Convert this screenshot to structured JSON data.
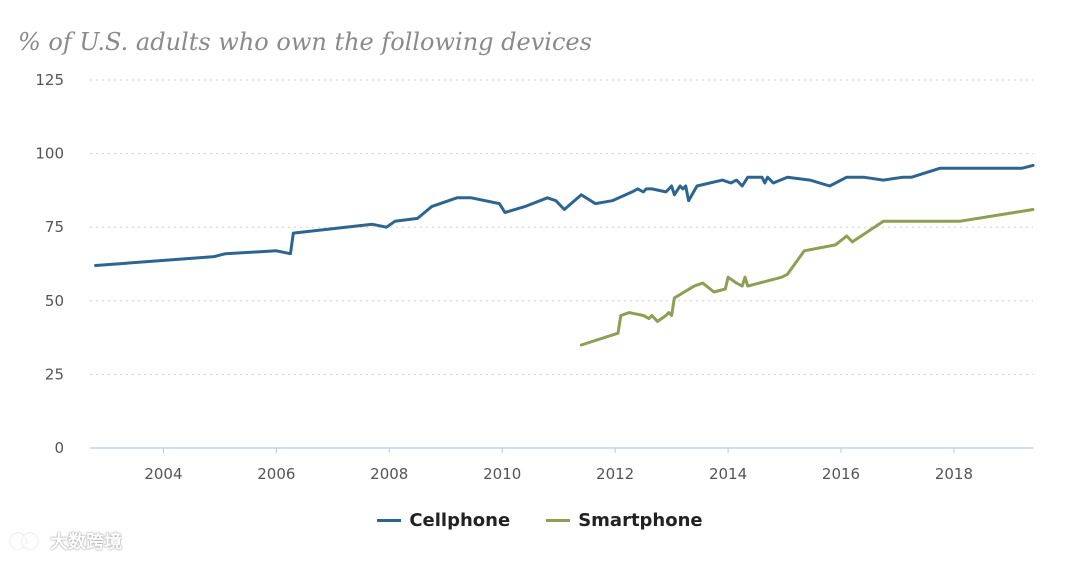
{
  "chart_data": {
    "type": "line",
    "title": "% of U.S. adults who own the following devices",
    "ylim": [
      0,
      125
    ],
    "yticks": [
      0,
      25,
      50,
      75,
      100,
      125
    ],
    "xlim": [
      2002.7,
      2019.4
    ],
    "xticks": [
      2004,
      2006,
      2008,
      2010,
      2012,
      2014,
      2016,
      2018
    ],
    "grid": true,
    "legend_position": "bottom-center",
    "series": [
      {
        "name": "Cellphone",
        "color": "#2e6590",
        "points": [
          [
            2002.8,
            62
          ],
          [
            2004.9,
            65
          ],
          [
            2005.1,
            66
          ],
          [
            2006.0,
            67
          ],
          [
            2006.25,
            66
          ],
          [
            2006.3,
            73
          ],
          [
            2007.7,
            76
          ],
          [
            2007.95,
            75
          ],
          [
            2008.1,
            77
          ],
          [
            2008.5,
            78
          ],
          [
            2008.75,
            82
          ],
          [
            2009.05,
            84
          ],
          [
            2009.2,
            85
          ],
          [
            2009.45,
            85
          ],
          [
            2009.95,
            83
          ],
          [
            2010.05,
            80
          ],
          [
            2010.4,
            82
          ],
          [
            2010.8,
            85
          ],
          [
            2010.95,
            84
          ],
          [
            2011.1,
            81
          ],
          [
            2011.4,
            86
          ],
          [
            2011.65,
            83
          ],
          [
            2011.95,
            84
          ],
          [
            2012.3,
            87
          ],
          [
            2012.4,
            88
          ],
          [
            2012.5,
            87
          ],
          [
            2012.55,
            88
          ],
          [
            2012.65,
            88
          ],
          [
            2012.9,
            87
          ],
          [
            2013.0,
            89
          ],
          [
            2013.05,
            86
          ],
          [
            2013.15,
            89
          ],
          [
            2013.2,
            88
          ],
          [
            2013.25,
            89
          ],
          [
            2013.3,
            84
          ],
          [
            2013.45,
            89
          ],
          [
            2013.9,
            91
          ],
          [
            2014.05,
            90
          ],
          [
            2014.15,
            91
          ],
          [
            2014.25,
            89
          ],
          [
            2014.35,
            92
          ],
          [
            2014.6,
            92
          ],
          [
            2014.65,
            90
          ],
          [
            2014.7,
            92
          ],
          [
            2014.8,
            90
          ],
          [
            2015.05,
            92
          ],
          [
            2015.45,
            91
          ],
          [
            2015.8,
            89
          ],
          [
            2016.1,
            92
          ],
          [
            2016.4,
            92
          ],
          [
            2016.75,
            91
          ],
          [
            2017.1,
            92
          ],
          [
            2017.25,
            92
          ],
          [
            2017.75,
            95
          ],
          [
            2018.95,
            95
          ],
          [
            2019.2,
            95
          ],
          [
            2020.05,
            96
          ]
        ]
      },
      {
        "name": "Smartphone",
        "color": "#8c9f52",
        "points": [
          [
            2011.4,
            35
          ],
          [
            2012.05,
            39
          ],
          [
            2012.1,
            45
          ],
          [
            2012.25,
            46
          ],
          [
            2012.5,
            45
          ],
          [
            2012.6,
            44
          ],
          [
            2012.65,
            45
          ],
          [
            2012.75,
            43
          ],
          [
            2012.9,
            45
          ],
          [
            2012.95,
            46
          ],
          [
            2013.0,
            45
          ],
          [
            2013.05,
            51
          ],
          [
            2013.4,
            55
          ],
          [
            2013.55,
            56
          ],
          [
            2013.75,
            53
          ],
          [
            2013.95,
            54
          ],
          [
            2014.0,
            58
          ],
          [
            2014.15,
            56
          ],
          [
            2014.25,
            55
          ],
          [
            2014.3,
            58
          ],
          [
            2014.35,
            55
          ],
          [
            2014.95,
            58
          ],
          [
            2015.05,
            59
          ],
          [
            2015.35,
            67
          ],
          [
            2015.9,
            69
          ],
          [
            2016.1,
            72
          ],
          [
            2016.2,
            70
          ],
          [
            2016.75,
            77
          ],
          [
            2017.05,
            77
          ],
          [
            2017.95,
            77
          ],
          [
            2018.1,
            77
          ],
          [
            2020.05,
            81
          ]
        ]
      }
    ]
  },
  "watermark": "大数跨境"
}
